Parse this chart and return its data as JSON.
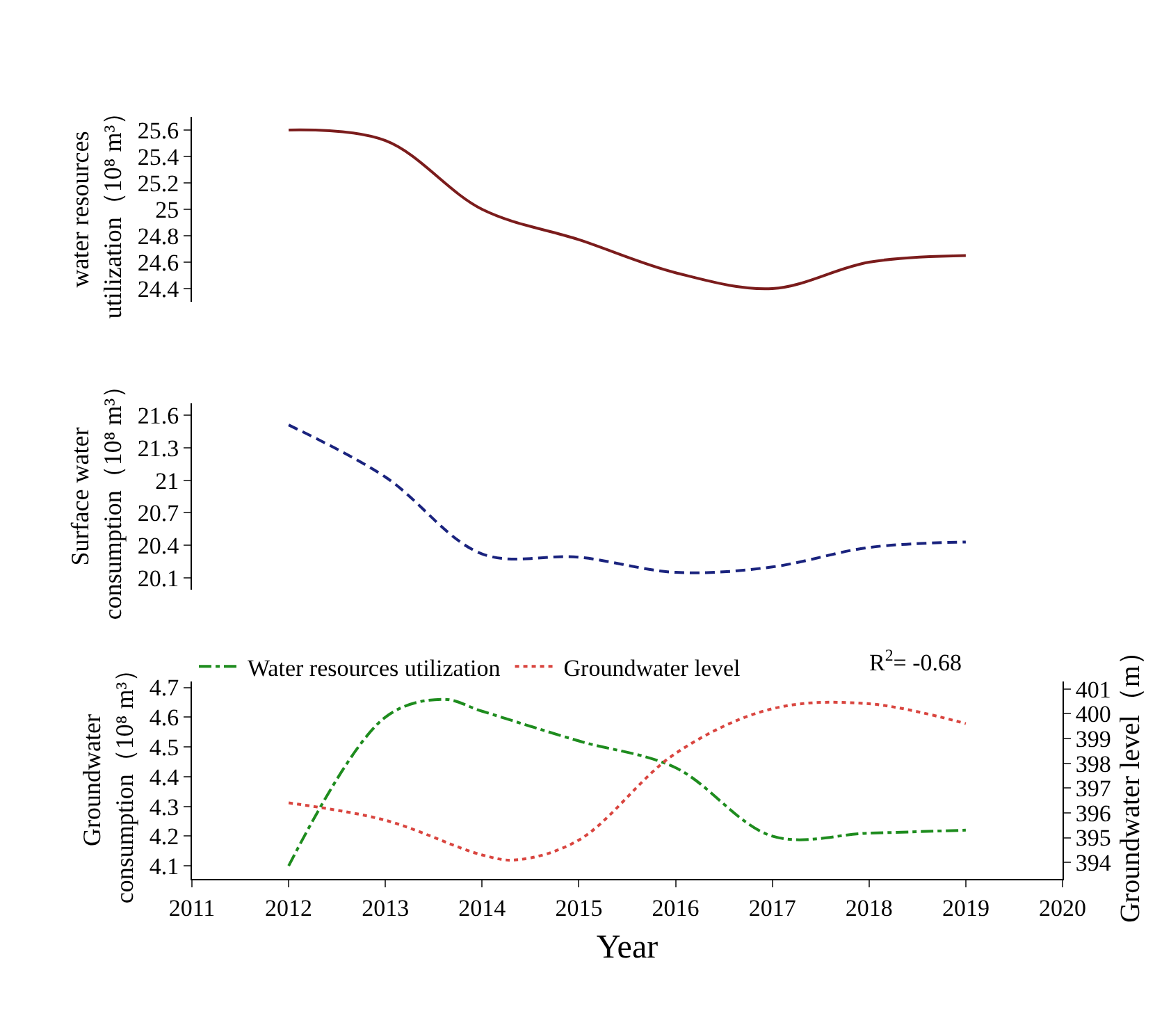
{
  "chart_data": [
    {
      "type": "line",
      "ylabel": "water resources\nutilization（10⁸ m³）",
      "xlim": [
        2011,
        2020
      ],
      "ylim": [
        24.3,
        25.7
      ],
      "yticks": [
        24.4,
        24.6,
        24.8,
        25,
        25.2,
        25.4,
        25.6
      ],
      "tick_labels": "y",
      "grid": false,
      "legend": false,
      "marker": "none",
      "line_style": "solid",
      "series": [
        {
          "color": "#7b1c1c",
          "x": [
            2012,
            2013,
            2014,
            2015,
            2016,
            2017,
            2018,
            2019
          ],
          "values": [
            25.6,
            25.52,
            25.0,
            24.77,
            24.52,
            24.4,
            24.6,
            24.65
          ]
        }
      ]
    },
    {
      "type": "line",
      "ylabel": "Surface water\nconsumption（10⁸ m³）",
      "xlim": [
        2011,
        2020
      ],
      "ylim": [
        19.99,
        21.71
      ],
      "yticks": [
        20.1,
        20.4,
        20.7,
        21,
        21.3,
        21.6
      ],
      "tick_labels": "y",
      "grid": false,
      "legend": false,
      "marker": "none",
      "line_style": "dashed",
      "series": [
        {
          "color": "#1a237e",
          "x": [
            2012,
            2013,
            2014,
            2015,
            2016,
            2017,
            2018,
            2019
          ],
          "values": [
            21.51,
            21.03,
            20.32,
            20.29,
            20.15,
            20.2,
            20.38,
            20.43
          ]
        }
      ]
    },
    {
      "type": "line",
      "xlabel": "Year",
      "ylabel": "Groundwater\nconsumption（10⁸ m³）",
      "y2label": "Groundwater level（m）",
      "xlim": [
        2011,
        2020
      ],
      "xticks": [
        2011,
        2012,
        2013,
        2014,
        2015,
        2016,
        2017,
        2018,
        2019,
        2020
      ],
      "ylim": [
        4.056,
        4.72
      ],
      "yticks": [
        4.1,
        4.2,
        4.3,
        4.4,
        4.5,
        4.6,
        4.7
      ],
      "y2lim": [
        393.33,
        401.3
      ],
      "y2ticks": [
        394,
        395,
        396,
        397,
        398,
        399,
        400,
        401
      ],
      "grid": false,
      "legend": "top",
      "marker": "none",
      "annotations": [
        "R$^{2}$= -0.68"
      ],
      "series": [
        {
          "name": "Water resources utilization",
          "color": "#1e8c1e",
          "line_style": "dashdot",
          "x": [
            2012,
            2013,
            2013.6,
            2014,
            2015,
            2016,
            2017,
            2018,
            2019
          ],
          "values": [
            4.1,
            4.6,
            4.66,
            4.62,
            4.52,
            4.43,
            4.2,
            4.21,
            4.22
          ]
        },
        {
          "name": "Groundwater level",
          "color": "#d9453f",
          "line_style": "dotted",
          "axis": "y2",
          "x": [
            2012,
            2013,
            2014,
            2014.35,
            2015,
            2016,
            2017,
            2018,
            2019
          ],
          "values": [
            396.4,
            395.7,
            394.3,
            394.1,
            394.9,
            398.4,
            400.2,
            400.4,
            399.6
          ]
        }
      ]
    }
  ]
}
